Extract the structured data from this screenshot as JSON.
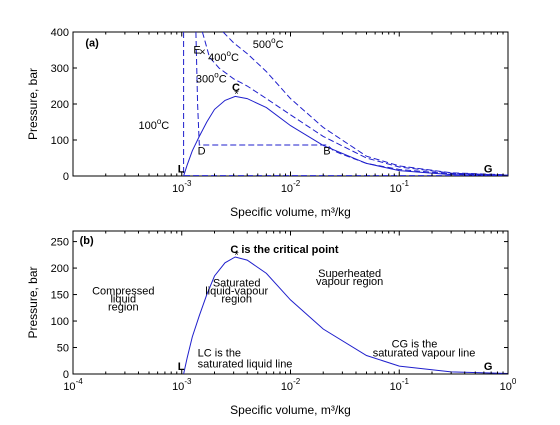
{
  "chart_data": [
    {
      "panel": "(a)",
      "type": "line",
      "xscale": "log",
      "xlim": [
        0.0001,
        1
      ],
      "ylim": [
        0,
        400
      ],
      "xlabel": "Specific volume, m³/kg",
      "ylabel": "Pressure, bar",
      "xticks": [
        0.001,
        0.01,
        0.1
      ],
      "xtick_labels": [
        {
          "base": "10",
          "exp": "-3"
        },
        {
          "base": "10",
          "exp": "-2"
        },
        {
          "base": "10",
          "exp": "-1"
        }
      ],
      "yticks": [
        0,
        100,
        200,
        300,
        400
      ],
      "ytick_labels": [
        "0",
        "100",
        "200",
        "300",
        "400"
      ],
      "grid": false,
      "series": [
        {
          "style": "solid",
          "color": "#1f1fcc",
          "role": "saturation dome",
          "x": [
            0.00104,
            0.00112,
            0.00125,
            0.00145,
            0.0017,
            0.002,
            0.0025,
            0.0031,
            0.004,
            0.006,
            0.01,
            0.02,
            0.05,
            0.1,
            0.3,
            1
          ],
          "y": [
            0,
            30,
            70,
            110,
            150,
            185,
            210,
            221,
            215,
            190,
            140,
            85,
            35,
            15,
            4,
            1
          ]
        },
        {
          "style": "dashed",
          "color": "#1f1fcc",
          "label": "100°C",
          "x": [
            0.00104,
            0.00104,
            0.00104,
            1
          ],
          "y": [
            400,
            100,
            1,
            1
          ]
        },
        {
          "style": "dashed",
          "color": "#1f1fcc",
          "label": "300°C",
          "x": [
            0.00135,
            0.0014,
            0.00145,
            0.0217,
            0.025,
            0.03,
            0.05,
            0.1,
            0.3,
            1
          ],
          "y": [
            400,
            200,
            86,
            86,
            70,
            60,
            35,
            18,
            6,
            2
          ]
        },
        {
          "style": "dashed",
          "color": "#1f1fcc",
          "label": "400°C",
          "x": [
            0.00155,
            0.0018,
            0.0022,
            0.003,
            0.004,
            0.006,
            0.01,
            0.02,
            0.05,
            0.1,
            0.3,
            1
          ],
          "y": [
            400,
            330,
            300,
            270,
            250,
            215,
            170,
            110,
            50,
            25,
            8,
            2
          ]
        },
        {
          "style": "dashed",
          "color": "#1f1fcc",
          "label": "500°C",
          "x": [
            0.0024,
            0.003,
            0.004,
            0.006,
            0.01,
            0.02,
            0.05,
            0.1,
            0.3,
            1
          ],
          "y": [
            400,
            370,
            340,
            290,
            215,
            135,
            55,
            28,
            9,
            3
          ]
        }
      ],
      "annotations": [
        {
          "text": "(a)",
          "x": 0.00013,
          "y": 360,
          "bold": true
        },
        {
          "text": "E",
          "x": 0.00128,
          "y": 340
        },
        {
          "text": "×",
          "x": 0.00145,
          "y": 335
        },
        {
          "text": "500",
          "sup": "o",
          "suffix": "C",
          "x": 0.0045,
          "y": 355
        },
        {
          "text": "400",
          "sup": "o",
          "suffix": "C",
          "x": 0.00175,
          "y": 320
        },
        {
          "text": "300",
          "sup": "o",
          "suffix": "C",
          "x": 0.00135,
          "y": 260
        },
        {
          "text": "C",
          "x": 0.0029,
          "y": 236,
          "bold": true
        },
        {
          "text": "*",
          "x": 0.00305,
          "y": 218
        },
        {
          "text": "100",
          "sup": "o",
          "suffix": "C",
          "x": 0.0004,
          "y": 130
        },
        {
          "text": "D",
          "x": 0.0014,
          "y": 60
        },
        {
          "text": "B",
          "x": 0.02,
          "y": 60
        },
        {
          "text": "L",
          "x": 0.00092,
          "y": 10,
          "bold": true
        },
        {
          "text": "G",
          "x": 0.6,
          "y": 10,
          "bold": true
        }
      ]
    },
    {
      "panel": "(b)",
      "type": "line",
      "xscale": "log",
      "xlim": [
        0.0001,
        1
      ],
      "ylim": [
        0,
        270
      ],
      "xlabel": "Specific volume, m³/kg",
      "ylabel": "Pressure, bar",
      "xticks": [
        0.0001,
        0.001,
        0.01,
        0.1,
        1
      ],
      "xtick_labels": [
        {
          "base": "10",
          "exp": "-4"
        },
        {
          "base": "10",
          "exp": "-3"
        },
        {
          "base": "10",
          "exp": "-2"
        },
        {
          "base": "10",
          "exp": "-1"
        },
        {
          "base": "10",
          "exp": "0"
        }
      ],
      "yticks": [
        0,
        50,
        100,
        150,
        200,
        250
      ],
      "ytick_labels": [
        "0",
        "50",
        "100",
        "150",
        "200",
        "250"
      ],
      "grid": false,
      "series": [
        {
          "style": "solid",
          "color": "#1f1fcc",
          "role": "saturation dome",
          "x": [
            0.00104,
            0.00112,
            0.00125,
            0.00145,
            0.0017,
            0.002,
            0.0025,
            0.0031,
            0.004,
            0.006,
            0.01,
            0.02,
            0.05,
            0.1,
            0.3,
            1
          ],
          "y": [
            0,
            30,
            70,
            110,
            150,
            185,
            210,
            221,
            215,
            190,
            140,
            85,
            35,
            15,
            4,
            1
          ]
        }
      ],
      "annotations": [
        {
          "text": "(b)",
          "x": 0.000115,
          "y": 245,
          "bold": true
        },
        {
          "text": "C is the critical point",
          "x": 0.0028,
          "y": 228,
          "bold": true
        },
        {
          "text": "*",
          "x": 0.00305,
          "y": 218
        },
        {
          "text": "Compressed",
          "x": 0.00029,
          "y": 150,
          "anchor": "middle"
        },
        {
          "text": "liquid",
          "x": 0.00029,
          "y": 135,
          "anchor": "middle"
        },
        {
          "text": "region",
          "x": 0.00029,
          "y": 120,
          "anchor": "middle"
        },
        {
          "text": "Saturated",
          "x": 0.0032,
          "y": 165,
          "anchor": "middle"
        },
        {
          "text": "liquid-vapour",
          "x": 0.0032,
          "y": 150,
          "anchor": "middle"
        },
        {
          "text": "region",
          "x": 0.0032,
          "y": 135,
          "anchor": "middle"
        },
        {
          "text": "Superheated",
          "x": 0.035,
          "y": 183,
          "anchor": "middle"
        },
        {
          "text": "vapour region",
          "x": 0.035,
          "y": 168,
          "anchor": "middle"
        },
        {
          "text": "LC is the",
          "x": 0.0014,
          "y": 33
        },
        {
          "text": "saturated liquid line",
          "x": 0.0014,
          "y": 12
        },
        {
          "text": "CG is the",
          "x": 0.085,
          "y": 50
        },
        {
          "text": "saturated vapour line",
          "x": 0.057,
          "y": 33
        },
        {
          "text": "L",
          "x": 0.00092,
          "y": 8,
          "bold": true
        },
        {
          "text": "G",
          "x": 0.6,
          "y": 8,
          "bold": true
        }
      ]
    }
  ]
}
